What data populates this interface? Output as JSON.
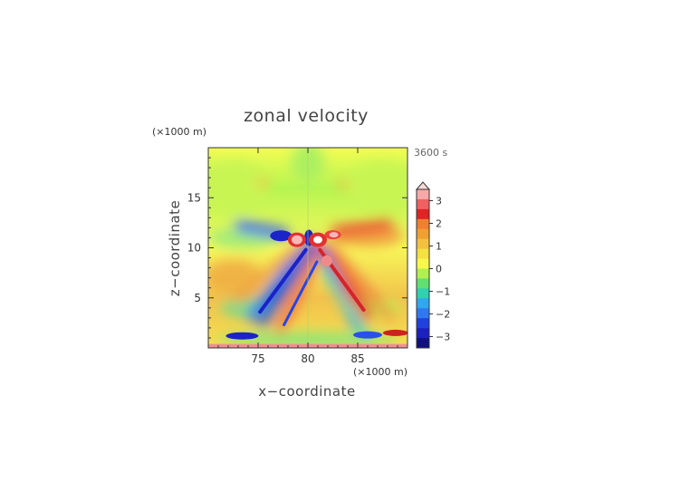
{
  "chart_data": {
    "type": "heatmap",
    "title": "zonal velocity",
    "xlabel": "x−coordinate",
    "ylabel": "z−coordinate",
    "x_unit": "(×1000 m)",
    "y_unit": "(×1000 m)",
    "time_label": "3600 s",
    "xlim": [
      70,
      90
    ],
    "ylim": [
      0,
      20
    ],
    "x_ticks": [
      "75",
      "80",
      "85"
    ],
    "y_ticks": [
      "5",
      "10",
      "15"
    ],
    "colorbar": {
      "ticks": [
        "3",
        "2",
        "1",
        "0",
        "−1",
        "−2",
        "−3"
      ],
      "range": [
        -3.5,
        3.5
      ],
      "extend_top": true
    },
    "features": [
      {
        "x": 78.8,
        "z": 10.8,
        "value": 3.5
      },
      {
        "x": 81.0,
        "z": 10.8,
        "value": 3.5
      },
      {
        "x": 82.5,
        "z": 11.3,
        "value": 2.6
      },
      {
        "x": 77.2,
        "z": 11.2,
        "value": -2.8
      },
      {
        "x": 80.1,
        "z": 11.0,
        "value": -2.6
      },
      {
        "x": 73.5,
        "z": 1.2,
        "value": -2.0
      },
      {
        "x": 86.0,
        "z": 1.3,
        "value": -1.8
      },
      {
        "x": 88.5,
        "z": 1.5,
        "value": 2.4
      }
    ]
  }
}
